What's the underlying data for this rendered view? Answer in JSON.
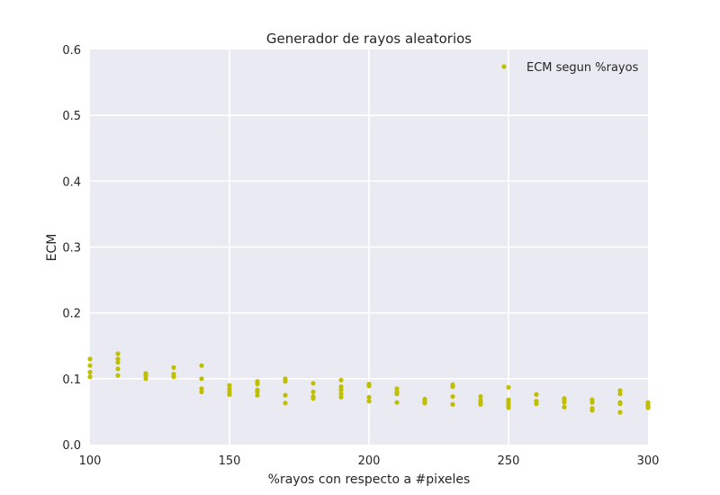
{
  "chart_data": {
    "type": "scatter",
    "title": "Generador de rayos aleatorios",
    "xlabel": "%rayos con respecto a #pixeles",
    "ylabel": "ECM",
    "xlim": [
      100,
      300
    ],
    "ylim": [
      0.0,
      0.6
    ],
    "xticks": [
      "100",
      "150",
      "200",
      "250",
      "300"
    ],
    "yticks": [
      "0.0",
      "0.1",
      "0.2",
      "0.3",
      "0.4",
      "0.5",
      "0.6"
    ],
    "grid": true,
    "legend_position": "top-right",
    "series": [
      {
        "name": "ECM segun %rayos",
        "color": "#bfbf00",
        "points": [
          [
            100,
            0.13
          ],
          [
            100,
            0.12
          ],
          [
            100,
            0.11
          ],
          [
            100,
            0.103
          ],
          [
            110,
            0.138
          ],
          [
            110,
            0.13
          ],
          [
            110,
            0.125
          ],
          [
            110,
            0.115
          ],
          [
            110,
            0.105
          ],
          [
            120,
            0.108
          ],
          [
            120,
            0.105
          ],
          [
            120,
            0.1
          ],
          [
            130,
            0.117
          ],
          [
            130,
            0.107
          ],
          [
            130,
            0.103
          ],
          [
            140,
            0.12
          ],
          [
            140,
            0.1
          ],
          [
            140,
            0.085
          ],
          [
            140,
            0.08
          ],
          [
            150,
            0.09
          ],
          [
            150,
            0.085
          ],
          [
            150,
            0.08
          ],
          [
            150,
            0.076
          ],
          [
            160,
            0.096
          ],
          [
            160,
            0.092
          ],
          [
            160,
            0.083
          ],
          [
            160,
            0.08
          ],
          [
            160,
            0.075
          ],
          [
            170,
            0.1
          ],
          [
            170,
            0.096
          ],
          [
            170,
            0.075
          ],
          [
            170,
            0.063
          ],
          [
            180,
            0.093
          ],
          [
            180,
            0.08
          ],
          [
            180,
            0.073
          ],
          [
            180,
            0.07
          ],
          [
            190,
            0.098
          ],
          [
            190,
            0.088
          ],
          [
            190,
            0.083
          ],
          [
            190,
            0.077
          ],
          [
            190,
            0.072
          ],
          [
            200,
            0.092
          ],
          [
            200,
            0.089
          ],
          [
            200,
            0.072
          ],
          [
            200,
            0.066
          ],
          [
            210,
            0.085
          ],
          [
            210,
            0.08
          ],
          [
            210,
            0.077
          ],
          [
            210,
            0.064
          ],
          [
            220,
            0.069
          ],
          [
            220,
            0.066
          ],
          [
            220,
            0.063
          ],
          [
            230,
            0.091
          ],
          [
            230,
            0.088
          ],
          [
            230,
            0.073
          ],
          [
            230,
            0.061
          ],
          [
            240,
            0.073
          ],
          [
            240,
            0.067
          ],
          [
            240,
            0.063
          ],
          [
            240,
            0.061
          ],
          [
            250,
            0.087
          ],
          [
            250,
            0.068
          ],
          [
            250,
            0.064
          ],
          [
            250,
            0.06
          ],
          [
            250,
            0.056
          ],
          [
            260,
            0.076
          ],
          [
            260,
            0.066
          ],
          [
            260,
            0.062
          ],
          [
            270,
            0.07
          ],
          [
            270,
            0.067
          ],
          [
            270,
            0.064
          ],
          [
            270,
            0.057
          ],
          [
            280,
            0.068
          ],
          [
            280,
            0.064
          ],
          [
            280,
            0.055
          ],
          [
            280,
            0.052
          ],
          [
            290,
            0.082
          ],
          [
            290,
            0.077
          ],
          [
            290,
            0.064
          ],
          [
            290,
            0.062
          ],
          [
            290,
            0.049
          ],
          [
            300,
            0.064
          ],
          [
            300,
            0.061
          ],
          [
            300,
            0.058
          ],
          [
            300,
            0.056
          ]
        ]
      }
    ]
  }
}
